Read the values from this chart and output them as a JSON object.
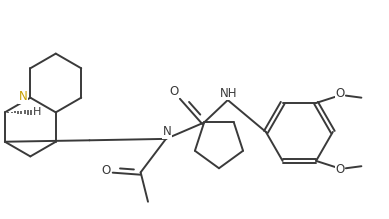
{
  "background_color": "#ffffff",
  "line_color": "#3a3a3a",
  "bond_lw": 1.4,
  "figsize": [
    3.89,
    2.19
  ],
  "dpi": 100,
  "xlim": [
    0.0,
    9.5
  ],
  "ylim": [
    0.8,
    5.8
  ],
  "N_quinolizine_color": "#c8a000",
  "stereo_hatch_count": 8
}
